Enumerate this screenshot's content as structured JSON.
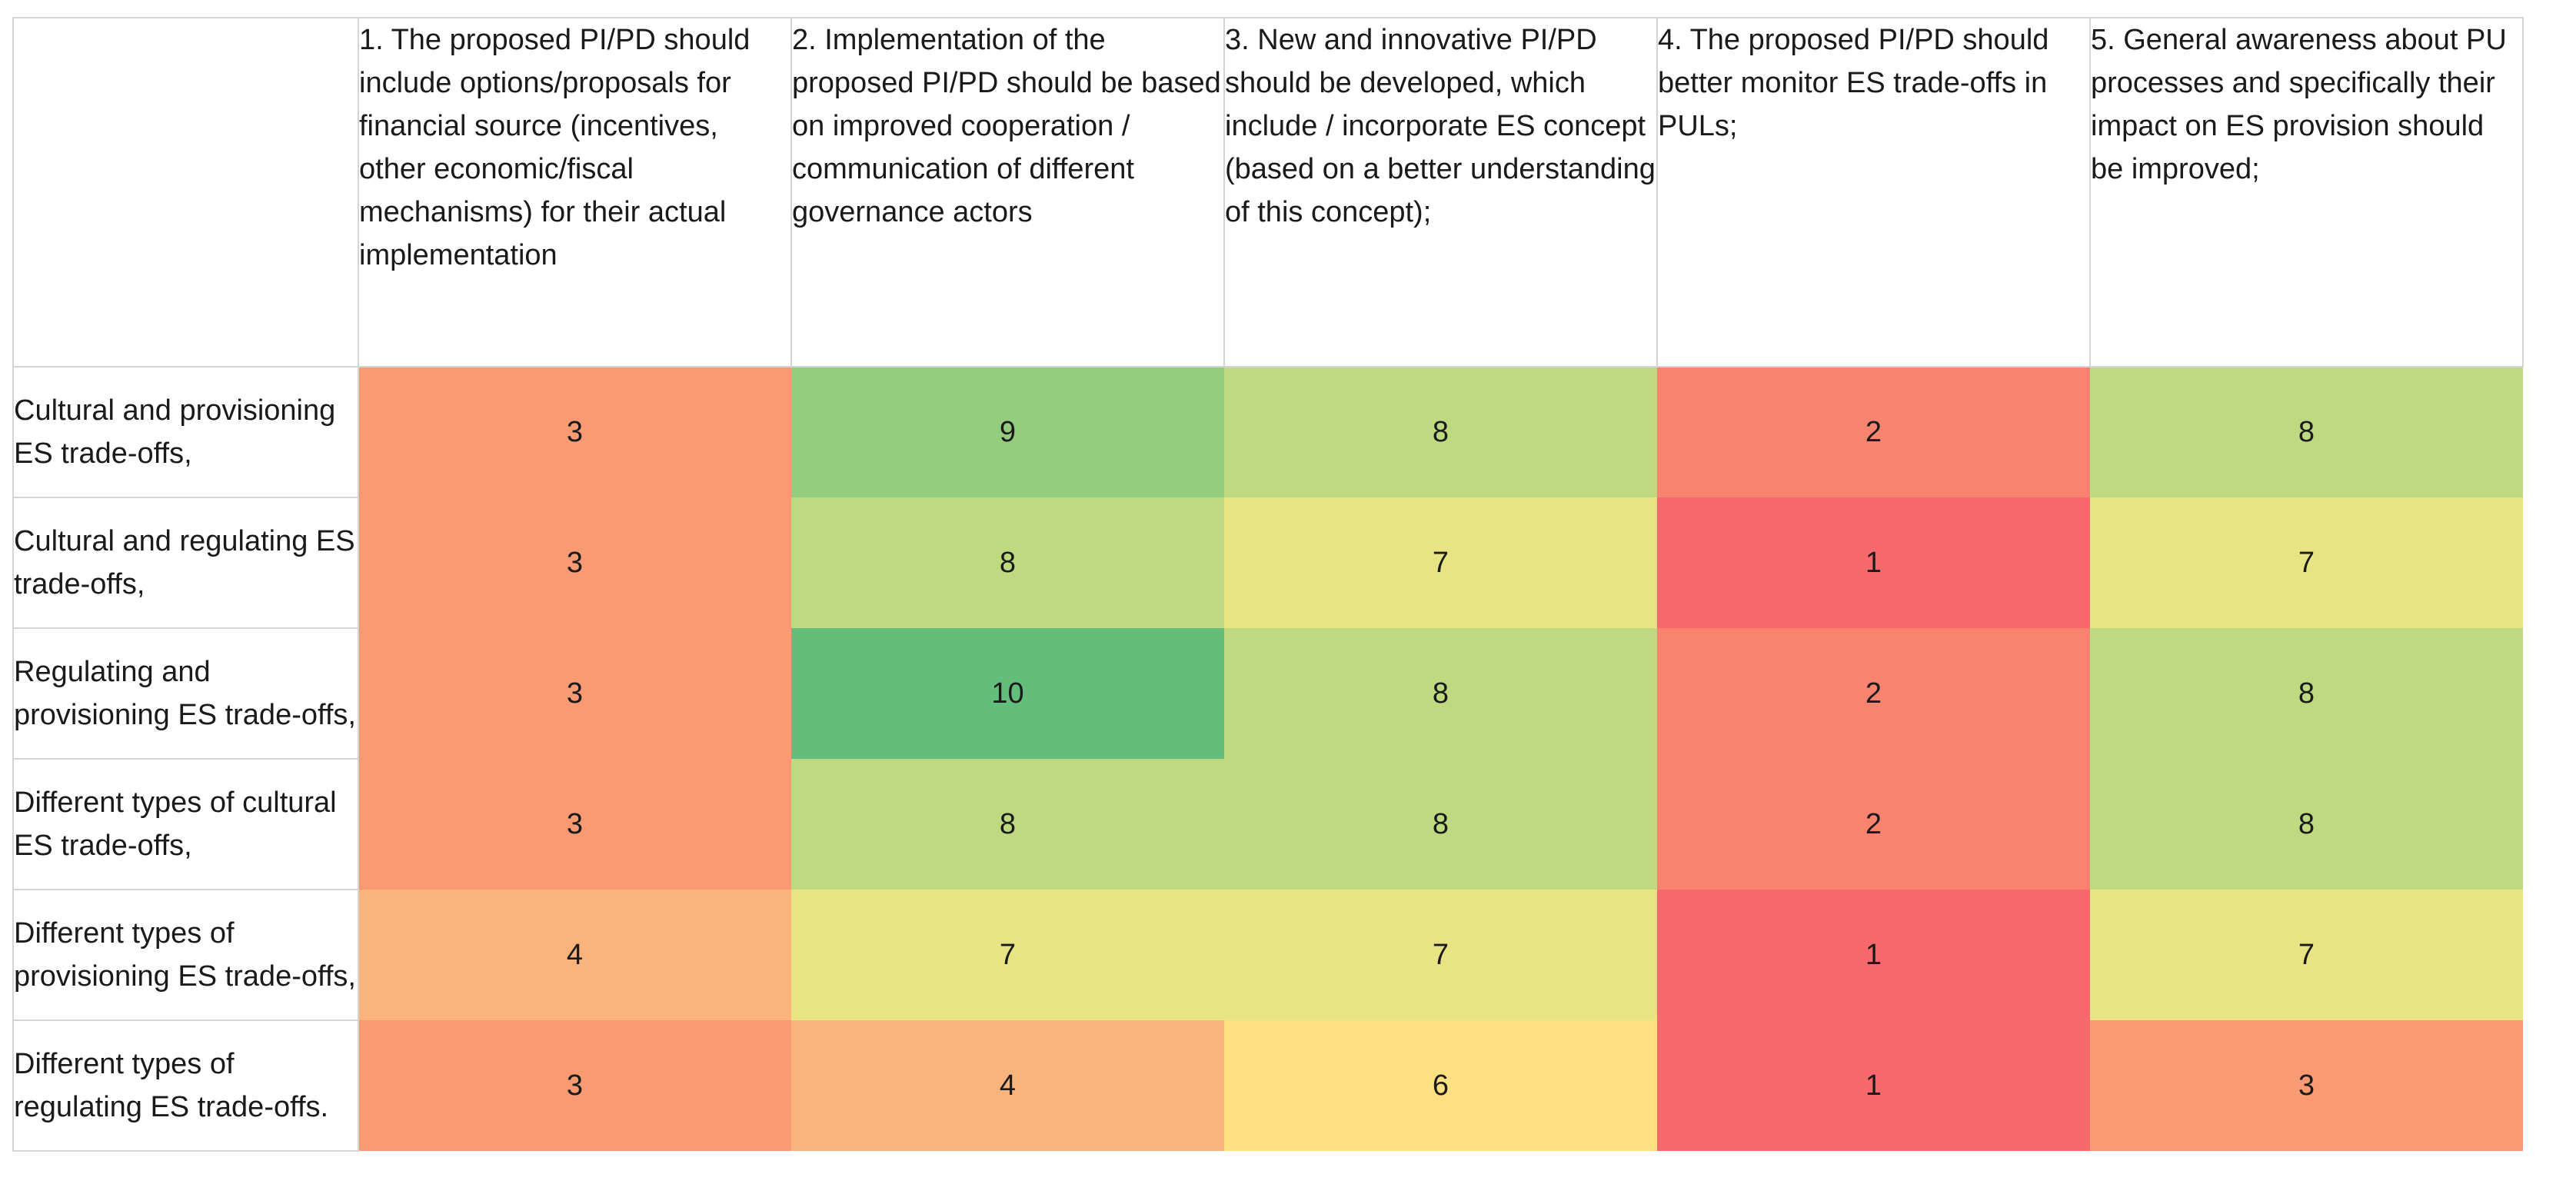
{
  "chart_data": {
    "type": "heatmap",
    "columns": [
      "1. The proposed PI/PD should include options/proposals for financial source (incentives, other economic/fiscal mechanisms) for their actual implementation",
      "2. Implementation of the proposed PI/PD should be based on improved cooperation / communication of different governance actors",
      "3. New and innovative PI/PD should be developed, which include / incorporate ES concept (based on a better understanding of this concept);",
      "4. The proposed PI/PD should better monitor ES trade-offs in PULs;",
      "5. General awareness about PU processes and specifically their impact on ES provision should be improved;"
    ],
    "rows": [
      "Cultural and provisioning ES trade-offs,",
      "Cultural and regulating ES trade-offs,",
      "Regulating and provisioning ES trade-offs,",
      "Different types of cultural ES trade-offs,",
      "Different types of provisioning ES trade-offs,",
      "Different types of regulating ES trade-offs."
    ],
    "values": [
      [
        3,
        9,
        8,
        2,
        8
      ],
      [
        3,
        8,
        7,
        1,
        7
      ],
      [
        3,
        10,
        8,
        2,
        8
      ],
      [
        3,
        8,
        8,
        2,
        8
      ],
      [
        4,
        7,
        7,
        1,
        7
      ],
      [
        3,
        4,
        6,
        1,
        3
      ]
    ],
    "color_scale": {
      "1": "#f8696b",
      "2": "#f8836f",
      "3": "#f99a73",
      "4": "#fab37a",
      "6": "#fedf81",
      "7": "#e8e483",
      "8": "#bfd981",
      "9": "#95cd7e",
      "10": "#63be7b"
    }
  }
}
